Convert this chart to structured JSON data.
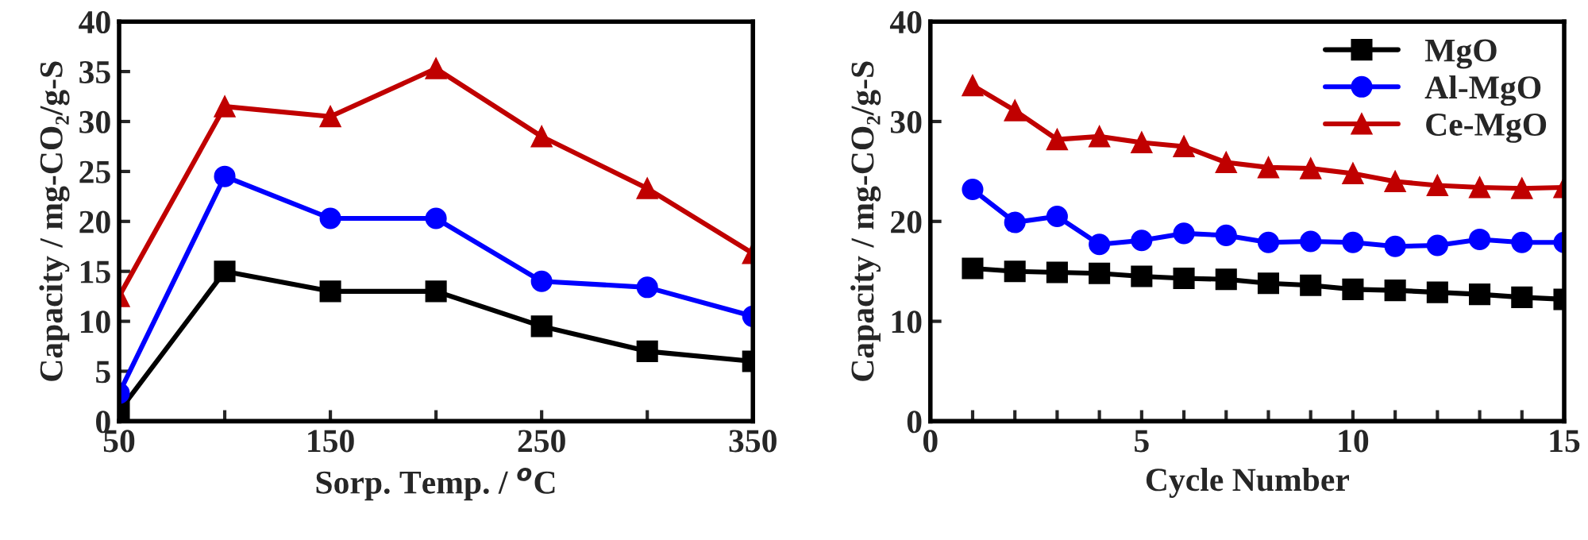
{
  "chart_data": [
    {
      "type": "line",
      "xlabel": "Sorp. Temp. / $^{o}$C",
      "ylabel": "Capacity / mg-CO₂/g-S",
      "x": [
        50,
        100,
        150,
        200,
        250,
        300,
        350
      ],
      "xlim": [
        50,
        350
      ],
      "xticks": [
        50,
        {
          "value": 100,
          "label": null
        },
        150,
        {
          "value": 200,
          "label": null
        },
        250,
        {
          "value": 300,
          "label": null
        },
        350
      ],
      "ylim": [
        0,
        40
      ],
      "yticks": [
        0,
        5,
        10,
        15,
        20,
        25,
        30,
        35,
        40
      ],
      "grid": false,
      "legend": false,
      "line_style": "solid",
      "series": [
        {
          "color": "#000000",
          "marker": "square",
          "values": [
            1,
            15,
            13,
            13,
            9.5,
            7,
            6
          ]
        },
        {
          "color": "#0000ff",
          "marker": "circle",
          "values": [
            2.8,
            24.5,
            20.3,
            20.3,
            14,
            13.4,
            10.5
          ]
        },
        {
          "color": "#c00000",
          "marker": "triangle",
          "values": [
            12.5,
            31.5,
            30.5,
            35.3,
            28.5,
            23.3,
            16.8
          ]
        }
      ]
    },
    {
      "type": "line",
      "xlabel": "Cycle Number",
      "ylabel": "Capacity / mg-CO₂/g-S",
      "x": [
        1,
        2,
        3,
        4,
        5,
        6,
        7,
        8,
        9,
        10,
        11,
        12,
        13,
        14,
        15
      ],
      "xlim": [
        0,
        15
      ],
      "xticks": [
        0,
        {
          "value": 1,
          "label": null
        },
        {
          "value": 2,
          "label": null
        },
        {
          "value": 3,
          "label": null
        },
        {
          "value": 4,
          "label": null
        },
        5,
        {
          "value": 6,
          "label": null
        },
        {
          "value": 7,
          "label": null
        },
        {
          "value": 8,
          "label": null
        },
        {
          "value": 9,
          "label": null
        },
        10,
        {
          "value": 11,
          "label": null
        },
        {
          "value": 12,
          "label": null
        },
        {
          "value": 13,
          "label": null
        },
        {
          "value": 14,
          "label": null
        },
        15
      ],
      "ylim": [
        0,
        40
      ],
      "yticks": [
        0,
        10,
        20,
        30,
        40
      ],
      "grid": false,
      "legend": "top right",
      "line_style": "solid",
      "series": [
        {
          "name": "MgO",
          "color": "#000000",
          "marker": "square",
          "values": [
            15.3,
            15,
            14.9,
            14.8,
            14.5,
            14.3,
            14.2,
            13.8,
            13.6,
            13.2,
            13.1,
            12.9,
            12.7,
            12.4,
            12.2
          ]
        },
        {
          "name": "Al-MgO",
          "color": "#0000ff",
          "marker": "circle",
          "values": [
            23.2,
            19.9,
            20.5,
            17.7,
            18.1,
            18.8,
            18.6,
            17.9,
            18,
            17.9,
            17.5,
            17.6,
            18.2,
            17.9,
            17.9
          ]
        },
        {
          "name": "Ce-MgO",
          "color": "#c00000",
          "marker": "triangle",
          "values": [
            33.6,
            31.1,
            28.2,
            28.5,
            27.9,
            27.5,
            25.9,
            25.4,
            25.3,
            24.8,
            24,
            23.6,
            23.4,
            23.3,
            23.4
          ]
        }
      ]
    }
  ]
}
